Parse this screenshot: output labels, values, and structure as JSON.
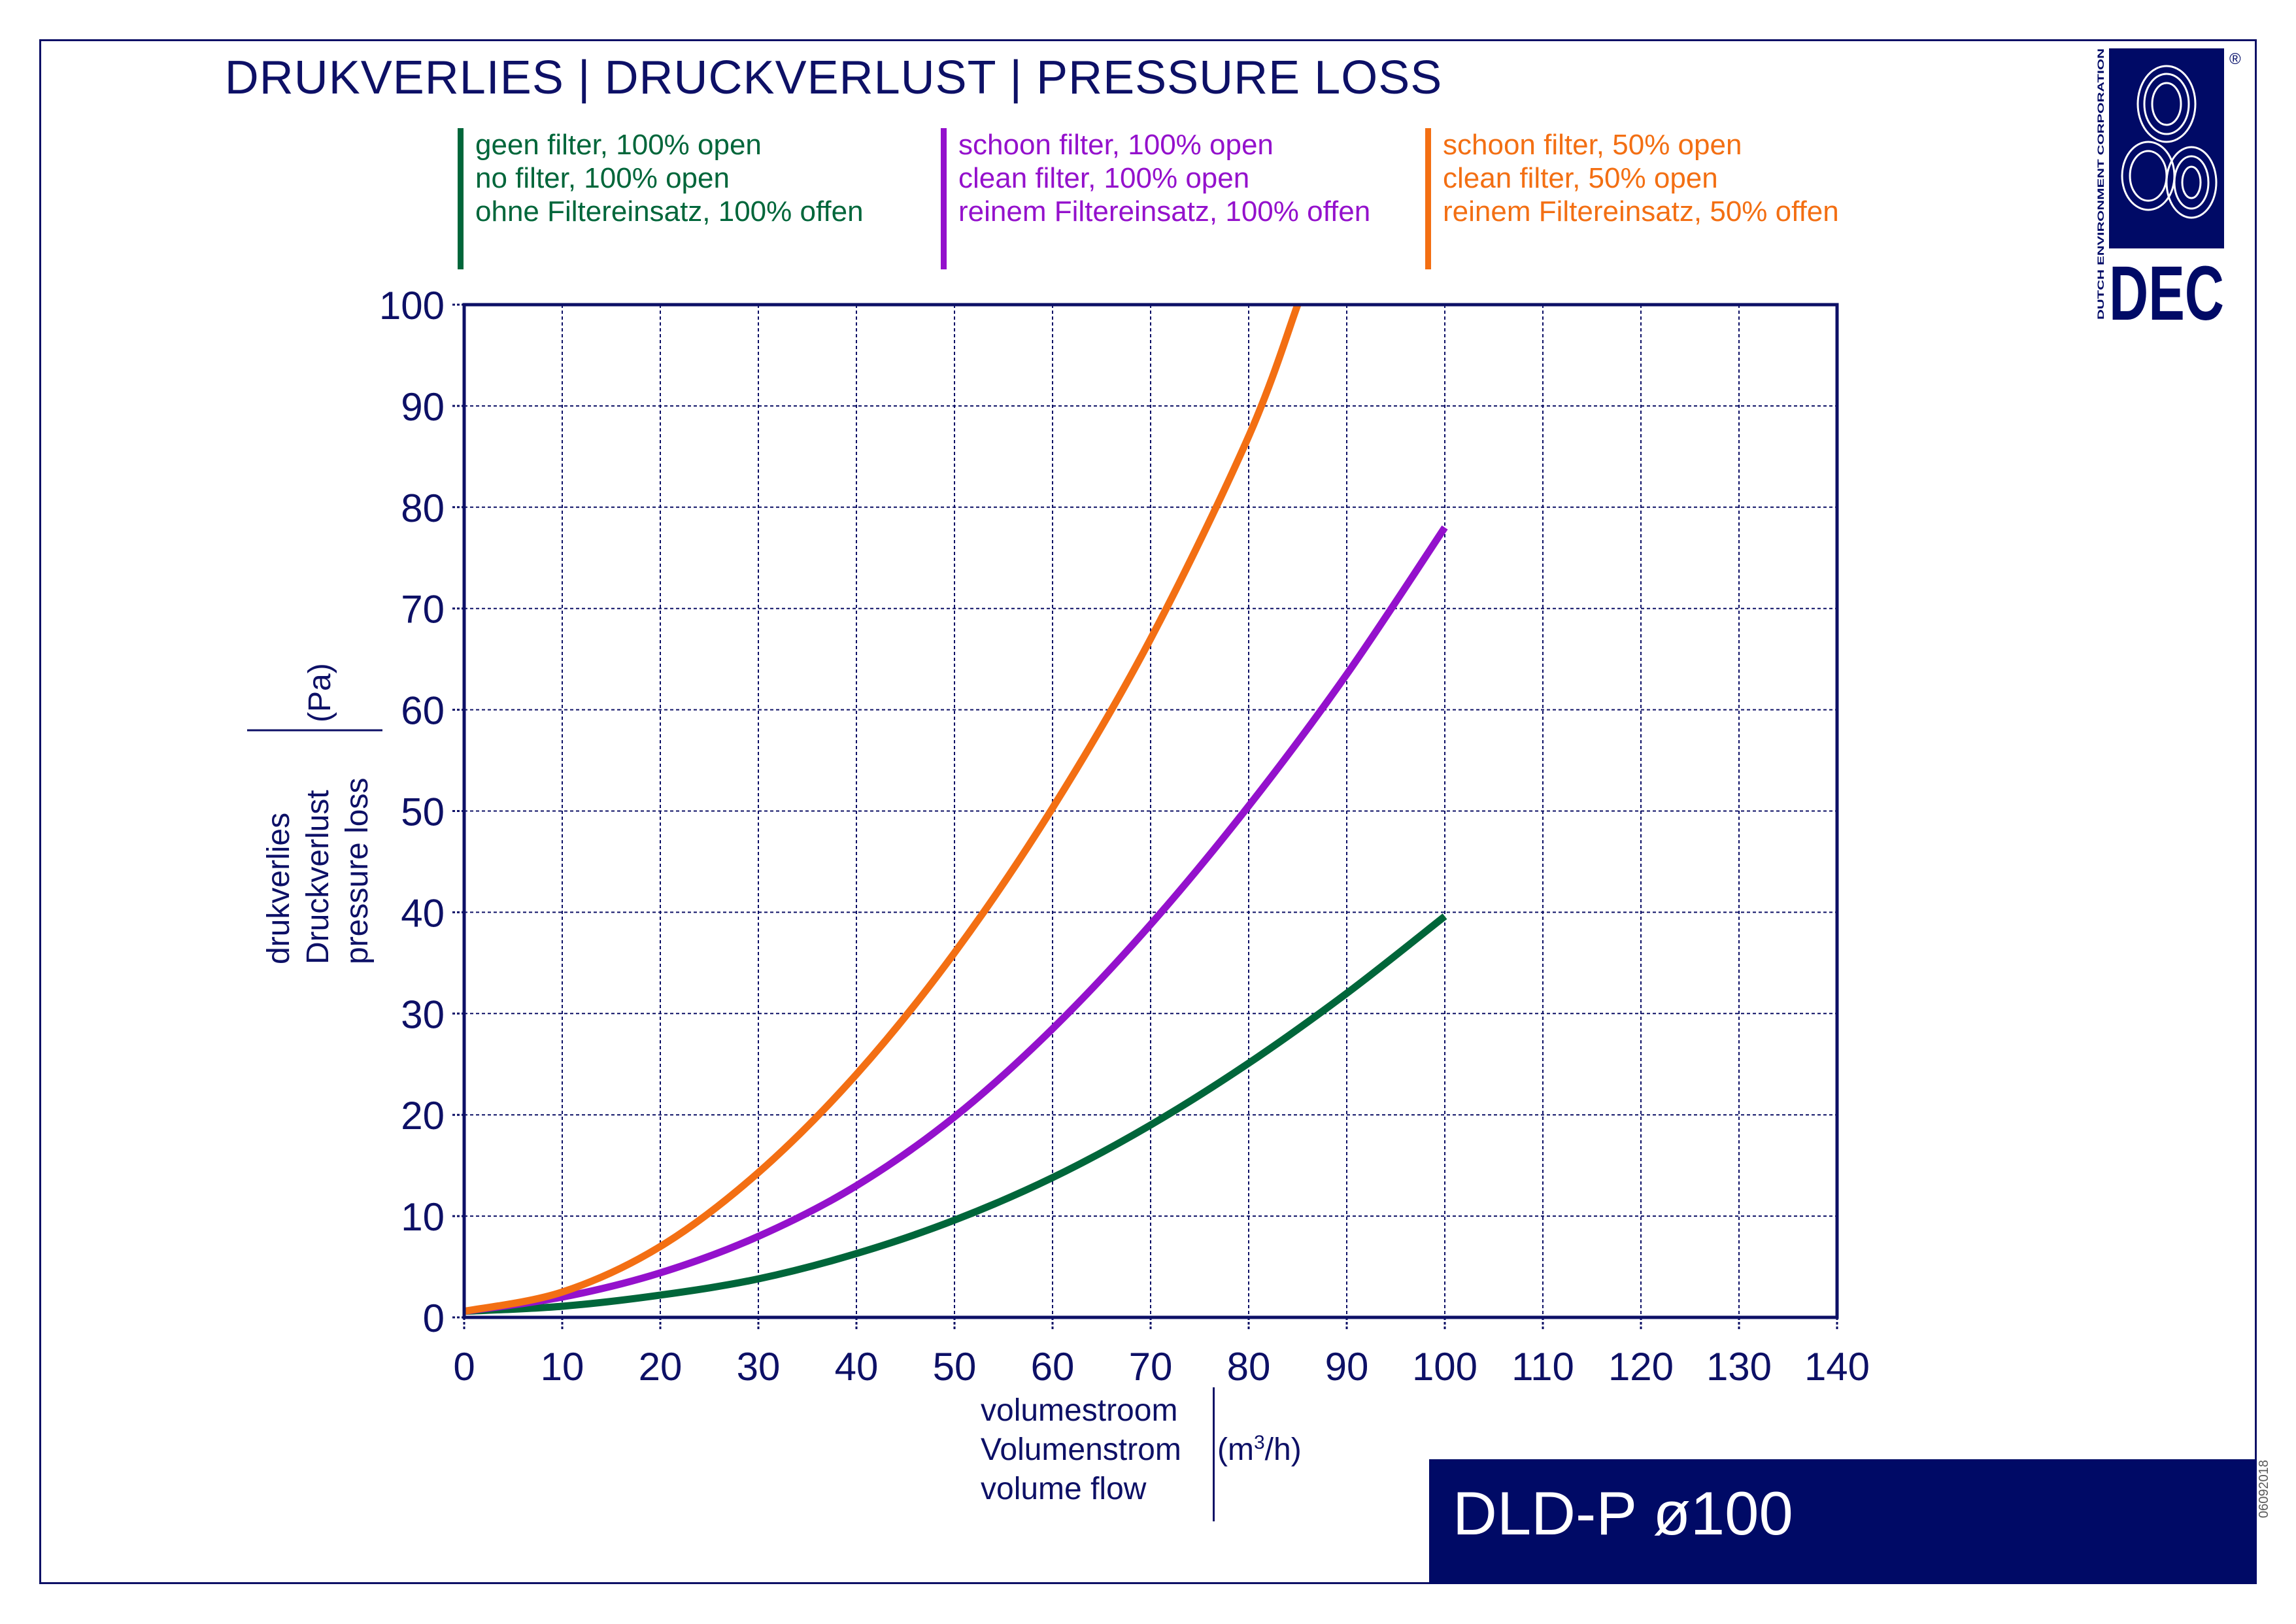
{
  "title": "DRUKVERLIES | DRUCKVERLUST | PRESSURE LOSS",
  "legend": [
    {
      "lines": [
        "geen filter, 100% open",
        "no filter, 100% open",
        "ohne Filtereinsatz, 100% offen"
      ],
      "color": "#00663a"
    },
    {
      "lines": [
        "schoon filter, 100% open",
        "clean filter, 100% open",
        "reinem Filtereinsatz, 100% offen"
      ],
      "color": "#9411cc"
    },
    {
      "lines": [
        "schoon filter, 50% open",
        "clean filter, 50% open",
        "reinem Filtereinsatz, 50% offen"
      ],
      "color": "#f36f13"
    }
  ],
  "y_label": {
    "lines": [
      "drukverlies",
      "Druckverlust",
      "pressure loss"
    ],
    "unit": "(Pa)"
  },
  "x_label": {
    "lines": [
      "volumestroom",
      "Volumenstrom",
      "volume flow"
    ],
    "unit_base": "(m",
    "unit_sup": "3",
    "unit_tail": "/h)"
  },
  "brand": {
    "corporation": "DUTCH ENVIRONMENT CORPORATION",
    "logo_text": "DEC",
    "registered": "®"
  },
  "footer": {
    "title": "DLD-P ø100",
    "doc_code": "06092018"
  },
  "colors": {
    "navy": "#0d1066",
    "footer_bg": "#000a66",
    "green": "#00663a",
    "purple": "#9411cc",
    "orange": "#f36f13"
  },
  "chart_data": {
    "type": "line",
    "title": "DRUKVERLIES | DRUCKVERLUST | PRESSURE LOSS",
    "xlabel": "volumestroom / Volumenstrom / volume flow (m3/h)",
    "ylabel": "drukverlies / Druckverlust / pressure loss (Pa)",
    "xlim": [
      0,
      140
    ],
    "ylim": [
      0,
      100
    ],
    "x_ticks": [
      0,
      10,
      20,
      30,
      40,
      50,
      60,
      70,
      80,
      90,
      100,
      110,
      120,
      130,
      140
    ],
    "y_ticks": [
      0,
      10,
      20,
      30,
      40,
      50,
      60,
      70,
      80,
      90,
      100
    ],
    "grid": true,
    "series": [
      {
        "name": "geen filter, 100% open",
        "color": "#00663a",
        "x": [
          0,
          10,
          20,
          30,
          40,
          50,
          60,
          70,
          80,
          90,
          100
        ],
        "y": [
          0.6,
          1.1,
          2.2,
          3.8,
          6.3,
          9.6,
          13.8,
          19.0,
          25.1,
          32.0,
          39.6
        ]
      },
      {
        "name": "schoon filter, 100% open",
        "color": "#9411cc",
        "x": [
          0,
          10,
          20,
          30,
          40,
          50,
          60,
          70,
          80,
          90,
          100
        ],
        "y": [
          0.6,
          2.0,
          4.4,
          8.0,
          13.0,
          19.8,
          28.5,
          38.8,
          50.5,
          63.5,
          78.0
        ]
      },
      {
        "name": "schoon filter, 50% open",
        "color": "#f36f13",
        "x": [
          0,
          10,
          20,
          30,
          40,
          50,
          60,
          70,
          80,
          85
        ],
        "y": [
          0.6,
          2.5,
          7.0,
          14.3,
          24.0,
          36.0,
          50.3,
          67.0,
          87.0,
          100.0
        ]
      }
    ]
  }
}
